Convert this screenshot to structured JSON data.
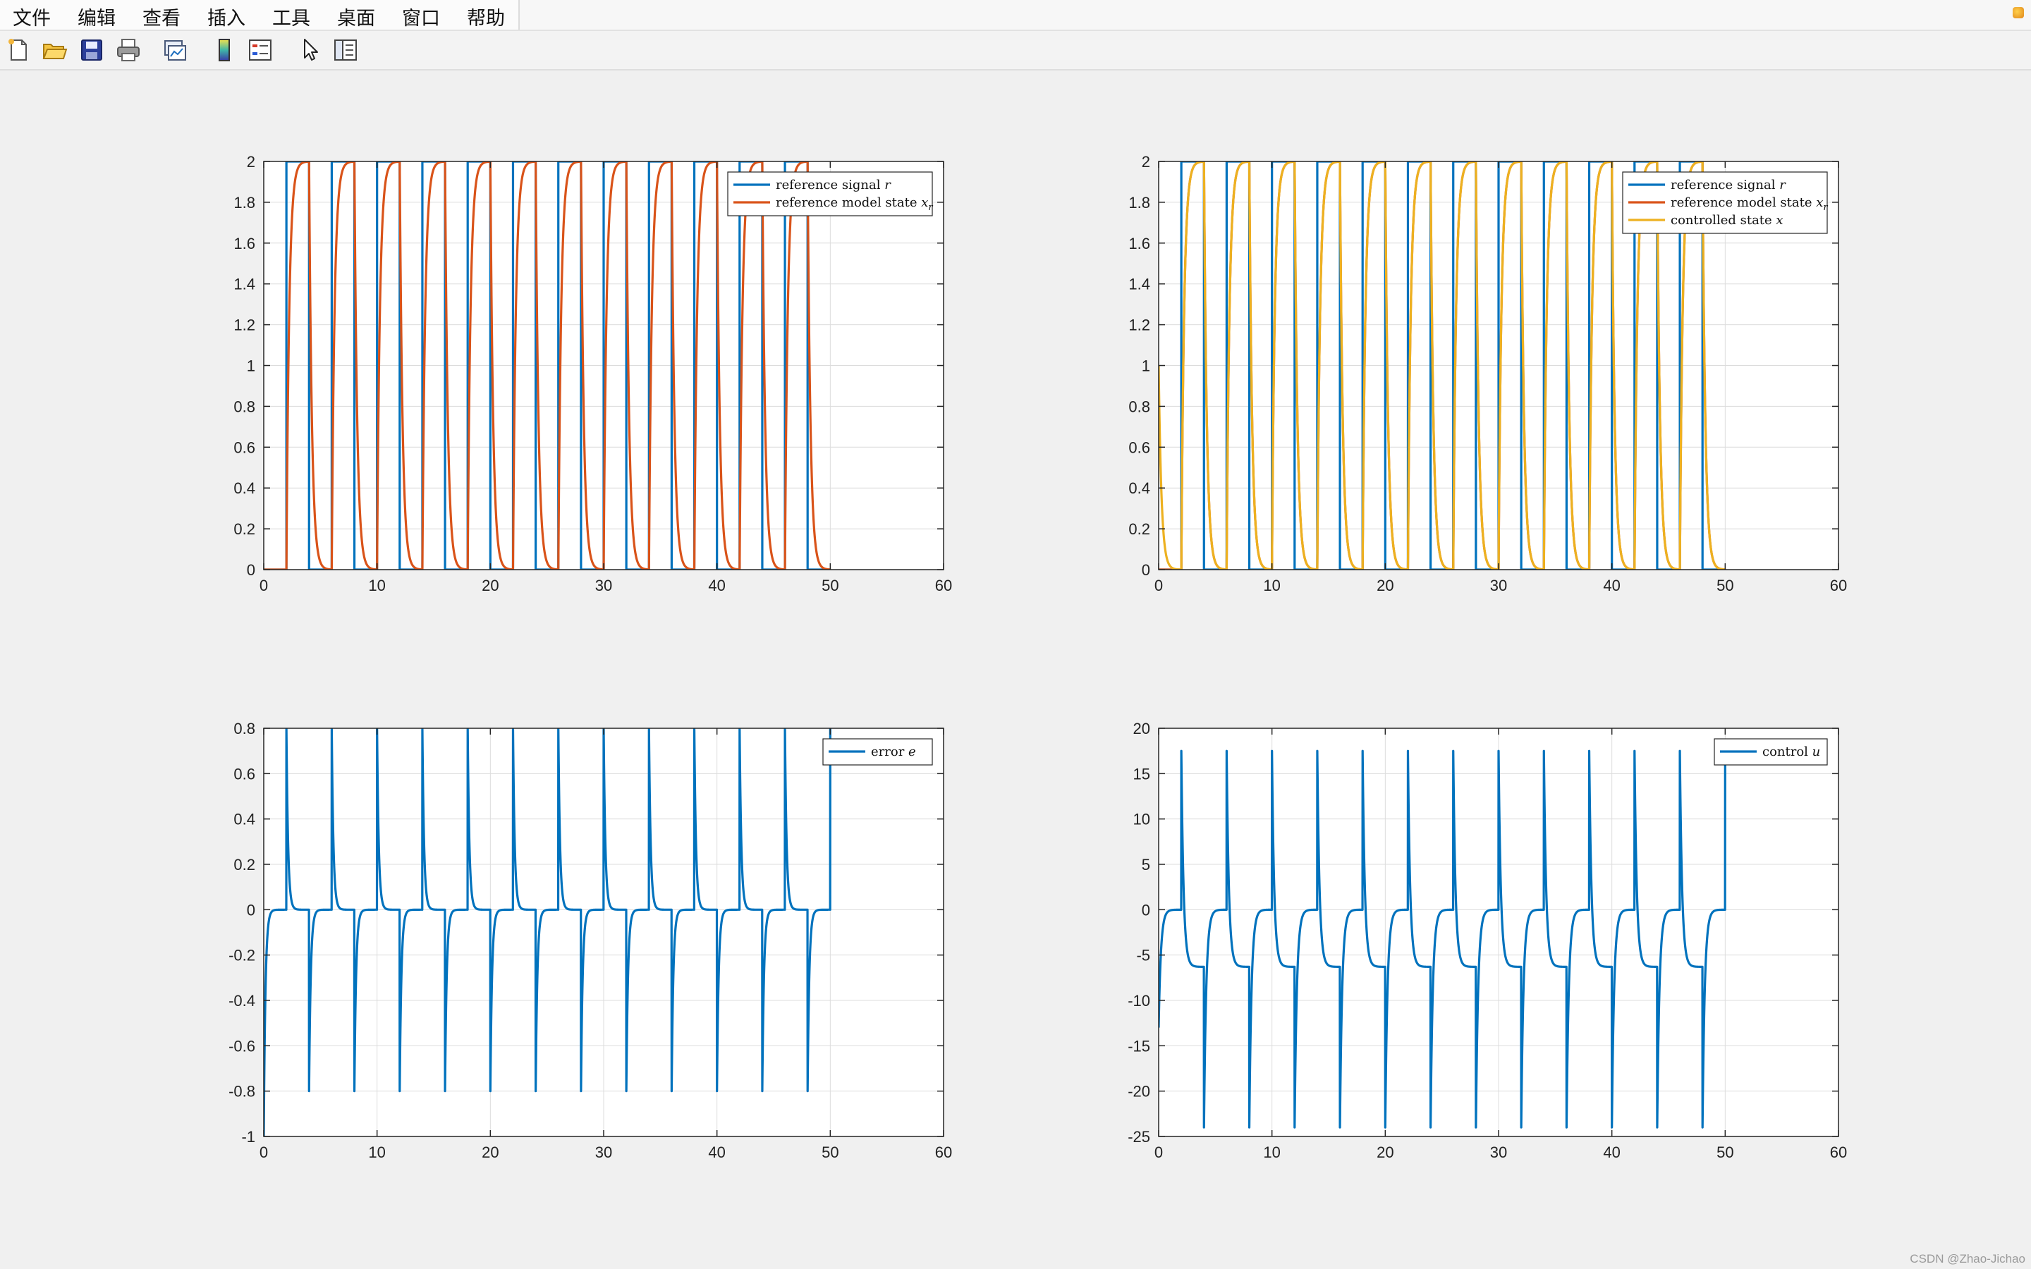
{
  "menubar": {
    "items": [
      "文件",
      "编辑",
      "查看",
      "插入",
      "工具",
      "桌面",
      "窗口",
      "帮助"
    ]
  },
  "toolbar": {
    "buttons": [
      {
        "icon": "new-figure-icon"
      },
      {
        "icon": "open-file-icon"
      },
      {
        "icon": "save-icon"
      },
      {
        "icon": "print-icon"
      },
      {
        "icon": "link-plot-icon"
      },
      {
        "icon": "insert-colorbar-icon"
      },
      {
        "icon": "insert-legend-icon"
      },
      {
        "icon": "edit-plot-arrow-icon"
      },
      {
        "icon": "property-inspector-icon"
      }
    ]
  },
  "colors": {
    "blue": "#0072BD",
    "orange": "#D95319",
    "yellow": "#EDB120",
    "figure_bg": "#f0f0f0",
    "axes_bg": "#ffffff",
    "grid": "#dcdcdc"
  },
  "watermark": "CSDN @Zhao-Jichao",
  "chart_data": [
    {
      "type": "line",
      "title": "",
      "xlabel": "",
      "ylabel": "",
      "xlim": [
        0,
        60
      ],
      "ylim": [
        0,
        2
      ],
      "xticks": [
        0,
        10,
        20,
        30,
        40,
        50,
        60
      ],
      "yticks": [
        0,
        0.2,
        0.4,
        0.6,
        0.8,
        1,
        1.2,
        1.4,
        1.6,
        1.8,
        2
      ],
      "ytick_labels": [
        "0",
        "0.2",
        "0.4",
        "0.6",
        "0.8",
        "1",
        "1.2",
        "1.4",
        "1.6",
        "1.8",
        "2"
      ],
      "grid": true,
      "legend_position": "top-right",
      "signal": {
        "period": 4,
        "high_start": 2,
        "high_duration": 2,
        "amplitude": 2,
        "t_end": 50,
        "model_time_constant": 0.25
      },
      "series": [
        {
          "name_text": "reference signal ",
          "name_math": "r",
          "color": "#0072BD",
          "kind": "reference"
        },
        {
          "name_text": "reference model state ",
          "name_math": "x",
          "name_sub": "r",
          "color": "#D95319",
          "kind": "model"
        }
      ]
    },
    {
      "type": "line",
      "title": "",
      "xlabel": "",
      "ylabel": "",
      "xlim": [
        0,
        60
      ],
      "ylim": [
        0,
        2
      ],
      "xticks": [
        0,
        10,
        20,
        30,
        40,
        50,
        60
      ],
      "yticks": [
        0,
        0.2,
        0.4,
        0.6,
        0.8,
        1,
        1.2,
        1.4,
        1.6,
        1.8,
        2
      ],
      "ytick_labels": [
        "0",
        "0.2",
        "0.4",
        "0.6",
        "0.8",
        "1",
        "1.2",
        "1.4",
        "1.6",
        "1.8",
        "2"
      ],
      "grid": true,
      "legend_position": "top-right",
      "signal": {
        "period": 4,
        "high_start": 2,
        "high_duration": 2,
        "amplitude": 2,
        "t_end": 50,
        "model_time_constant": 0.25,
        "x0": 1
      },
      "series": [
        {
          "name_text": "reference signal ",
          "name_math": "r",
          "color": "#0072BD",
          "kind": "reference"
        },
        {
          "name_text": "reference model state ",
          "name_math": "x",
          "name_sub": "r",
          "color": "#D95319",
          "kind": "model"
        },
        {
          "name_text": "controlled state ",
          "name_math": "x",
          "color": "#EDB120",
          "kind": "controlled"
        }
      ]
    },
    {
      "type": "line",
      "title": "",
      "xlabel": "",
      "ylabel": "",
      "xlim": [
        0,
        60
      ],
      "ylim": [
        -1,
        0.8
      ],
      "xticks": [
        0,
        10,
        20,
        30,
        40,
        50,
        60
      ],
      "yticks": [
        -1,
        -0.8,
        -0.6,
        -0.4,
        -0.2,
        0,
        0.2,
        0.4,
        0.6,
        0.8
      ],
      "ytick_labels": [
        "-1",
        "-0.8",
        "-0.6",
        "-0.4",
        "-0.2",
        "0",
        "0.2",
        "0.4",
        "0.6",
        "0.8"
      ],
      "grid": true,
      "legend_position": "top-right",
      "signal": {
        "period": 4,
        "t_end": 50,
        "e0": -1,
        "rise_peak": 0.8,
        "fall_peak": -0.8,
        "decay": 0.15
      },
      "series": [
        {
          "name_text": "error ",
          "name_math": "e",
          "color": "#0072BD",
          "kind": "error"
        }
      ]
    },
    {
      "type": "line",
      "title": "",
      "xlabel": "",
      "ylabel": "",
      "xlim": [
        0,
        60
      ],
      "ylim": [
        -25,
        20
      ],
      "xticks": [
        0,
        10,
        20,
        30,
        40,
        50,
        60
      ],
      "yticks": [
        -25,
        -20,
        -15,
        -10,
        -5,
        0,
        5,
        10,
        15,
        20
      ],
      "ytick_labels": [
        "-25",
        "-20",
        "-15",
        "-10",
        "-5",
        "0",
        "5",
        "10",
        "15",
        "20"
      ],
      "grid": true,
      "legend_position": "top-right",
      "signal": {
        "period": 4,
        "t_end": 50,
        "u0": -13,
        "rise_peak": 17.5,
        "high_level": -6.3,
        "fall_peak": -24,
        "decay": 0.2
      },
      "series": [
        {
          "name_text": "control ",
          "name_math": "u",
          "color": "#0072BD",
          "kind": "control"
        }
      ]
    }
  ]
}
